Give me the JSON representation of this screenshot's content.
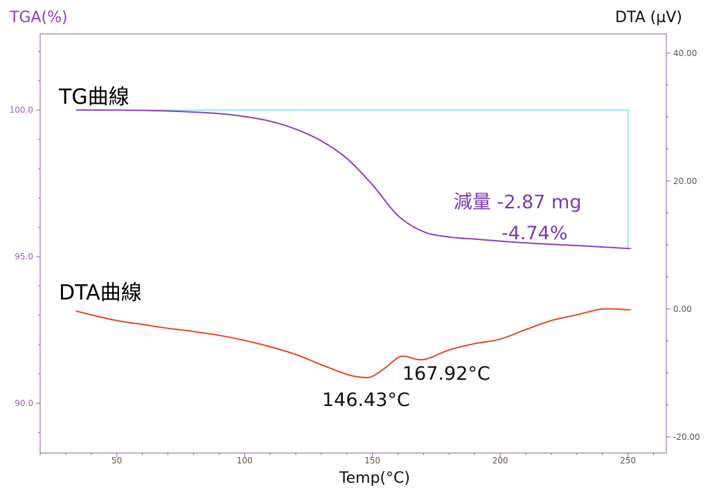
{
  "chart_data": {
    "type": "line",
    "left_axis_title": "TGA(%)",
    "right_axis_title": "DTA (µV)",
    "xlabel": "Temp(°C)",
    "xlim": [
      20,
      265
    ],
    "ylim_left": [
      88.3,
      102.6
    ],
    "ylim_right": [
      -22.5,
      43.0
    ],
    "x_ticks": [
      50,
      100,
      150,
      200,
      250
    ],
    "x_tick_labels": [
      "50",
      "100",
      "150",
      "200",
      "250"
    ],
    "y_ticks_left": [
      90,
      95,
      100
    ],
    "y_tick_labels_left": [
      "90.0",
      "95.0",
      "100.0"
    ],
    "y_ticks_right": [
      -20,
      0,
      20,
      40
    ],
    "y_tick_labels_right": [
      "-20.00",
      "0.00",
      "20.00",
      "40.00"
    ],
    "colors": {
      "tg": "#8a3fc0",
      "dta": "#e04a1e",
      "step": "#7fd8e0",
      "axis": "#8a5aa8"
    },
    "series": [
      {
        "name": "TG曲線",
        "axis": "left",
        "x": [
          34,
          50,
          70,
          90,
          100,
          110,
          120,
          130,
          140,
          150,
          160,
          170,
          180,
          190,
          200,
          210,
          220,
          230,
          240,
          250,
          251
        ],
        "y": [
          100.0,
          100.0,
          99.97,
          99.88,
          99.78,
          99.62,
          99.35,
          98.95,
          98.35,
          97.45,
          96.4,
          95.85,
          95.67,
          95.6,
          95.53,
          95.47,
          95.42,
          95.38,
          95.33,
          95.28,
          95.28
        ]
      },
      {
        "name": "DTA曲線",
        "axis": "right",
        "x": [
          34,
          40,
          50,
          60,
          70,
          80,
          90,
          100,
          110,
          120,
          130,
          140,
          146.43,
          150,
          155,
          160,
          163,
          167.92,
          172,
          180,
          190,
          200,
          210,
          220,
          230,
          240,
          250,
          251
        ],
        "y": [
          -0.3,
          -0.9,
          -1.8,
          -2.4,
          -3.0,
          -3.5,
          -4.1,
          -4.9,
          -5.9,
          -7.1,
          -8.7,
          -10.2,
          -10.7,
          -10.5,
          -9.2,
          -7.6,
          -7.4,
          -7.9,
          -7.7,
          -6.4,
          -5.4,
          -4.7,
          -3.2,
          -1.8,
          -0.9,
          0.0,
          -0.1,
          -0.1
        ]
      }
    ],
    "step": {
      "x": [
        34,
        250
      ],
      "y_start": 100.0,
      "y_end": 95.28
    },
    "annotations": {
      "tg_label": "TG曲線",
      "dta_label": "DTA曲線",
      "loss_line1": "減量 -2.87 mg",
      "loss_line2": "-4.74%",
      "peak1": "146.43°C",
      "peak2": "167.92°C"
    }
  }
}
